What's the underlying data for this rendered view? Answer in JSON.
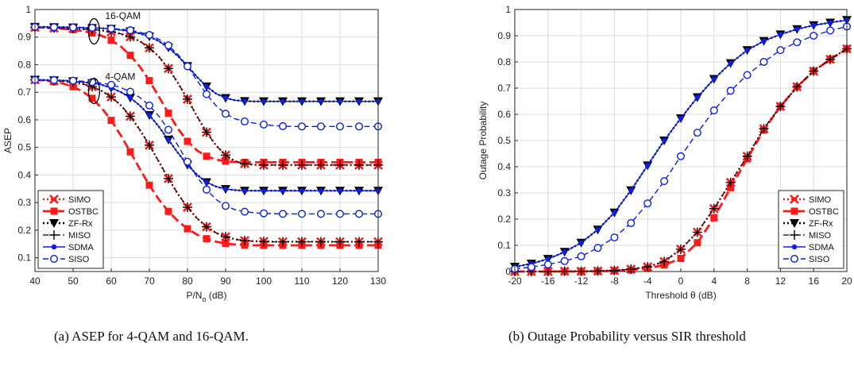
{
  "captions": {
    "a": "(a)  ASEP for 4-QAM and 16-QAM.",
    "b": "(b)  Outage Probability versus SIR threshold"
  },
  "chart_data": [
    {
      "type": "line",
      "xlabel": "P/N",
      "xlabel_sub": "o",
      "xlabel_unit": "(dB)",
      "ylabel": "ASEP",
      "xlim": [
        40,
        130
      ],
      "ylim": [
        0.05,
        1.0
      ],
      "xticks": [
        40,
        50,
        60,
        70,
        80,
        90,
        100,
        110,
        120,
        130
      ],
      "yticks": [
        0.1,
        0.2,
        0.3,
        0.4,
        0.5,
        0.6,
        0.7,
        0.8,
        0.9,
        1
      ],
      "grid": true,
      "legend_position": "bottom-left",
      "annotations": [
        "16-QAM",
        "4-QAM"
      ],
      "x": [
        40,
        42.5,
        45,
        47.5,
        50,
        52.5,
        55,
        57.5,
        60,
        62.5,
        65,
        67.5,
        70,
        72.5,
        75,
        77.5,
        80,
        82.5,
        85,
        87.5,
        90,
        92.5,
        95,
        97.5,
        100,
        102.5,
        105,
        107.5,
        110,
        112.5,
        115,
        117.5,
        120,
        122.5,
        125,
        127.5,
        130
      ],
      "series": [
        {
          "name": "SIMO",
          "group": "16-QAM",
          "values": [
            0.935,
            0.934,
            0.933,
            0.932,
            0.931,
            0.929,
            0.927,
            0.924,
            0.919,
            0.912,
            0.901,
            0.885,
            0.861,
            0.829,
            0.786,
            0.734,
            0.675,
            0.613,
            0.555,
            0.507,
            0.472,
            0.45,
            0.441,
            0.437,
            0.436,
            0.436,
            0.436,
            0.436,
            0.436,
            0.436,
            0.436,
            0.436,
            0.436,
            0.436,
            0.436,
            0.436,
            0.436
          ]
        },
        {
          "name": "OSTBC",
          "group": "16-QAM",
          "values": [
            0.935,
            0.934,
            0.932,
            0.93,
            0.927,
            0.922,
            0.915,
            0.905,
            0.889,
            0.866,
            0.834,
            0.793,
            0.742,
            0.684,
            0.624,
            0.568,
            0.522,
            0.489,
            0.468,
            0.456,
            0.45,
            0.447,
            0.446,
            0.446,
            0.446,
            0.446,
            0.446,
            0.446,
            0.446,
            0.446,
            0.446,
            0.446,
            0.446,
            0.446,
            0.446,
            0.446,
            0.446
          ]
        },
        {
          "name": "ZF-Rx",
          "group": "16-QAM",
          "values": [
            0.937,
            0.937,
            0.936,
            0.936,
            0.935,
            0.934,
            0.933,
            0.932,
            0.93,
            0.926,
            0.921,
            0.913,
            0.902,
            0.885,
            0.862,
            0.831,
            0.795,
            0.756,
            0.721,
            0.695,
            0.679,
            0.671,
            0.668,
            0.667,
            0.667,
            0.667,
            0.667,
            0.667,
            0.667,
            0.667,
            0.667,
            0.667,
            0.667,
            0.667,
            0.667,
            0.667,
            0.667
          ]
        },
        {
          "name": "MISO",
          "group": "16-QAM",
          "values": [
            0.935,
            0.934,
            0.933,
            0.932,
            0.931,
            0.929,
            0.927,
            0.924,
            0.919,
            0.912,
            0.901,
            0.885,
            0.861,
            0.829,
            0.786,
            0.734,
            0.675,
            0.613,
            0.555,
            0.507,
            0.472,
            0.45,
            0.441,
            0.437,
            0.436,
            0.436,
            0.436,
            0.436,
            0.436,
            0.436,
            0.436,
            0.436,
            0.436,
            0.436,
            0.436,
            0.436,
            0.436
          ]
        },
        {
          "name": "SDMA",
          "group": "16-QAM",
          "values": [
            0.937,
            0.937,
            0.936,
            0.936,
            0.935,
            0.934,
            0.933,
            0.932,
            0.93,
            0.926,
            0.921,
            0.913,
            0.902,
            0.885,
            0.862,
            0.831,
            0.795,
            0.756,
            0.721,
            0.695,
            0.679,
            0.671,
            0.668,
            0.667,
            0.667,
            0.667,
            0.667,
            0.667,
            0.667,
            0.667,
            0.667,
            0.667,
            0.667,
            0.667,
            0.667,
            0.667,
            0.667
          ]
        },
        {
          "name": "SISO",
          "group": "16-QAM",
          "values": [
            0.937,
            0.937,
            0.936,
            0.936,
            0.935,
            0.935,
            0.934,
            0.933,
            0.931,
            0.929,
            0.925,
            0.918,
            0.908,
            0.892,
            0.87,
            0.837,
            0.794,
            0.743,
            0.693,
            0.651,
            0.622,
            0.604,
            0.594,
            0.588,
            0.583,
            0.579,
            0.577,
            0.576,
            0.576,
            0.576,
            0.576,
            0.576,
            0.576,
            0.576,
            0.576,
            0.576,
            0.576
          ]
        },
        {
          "name": "SIMO",
          "group": "4-QAM",
          "values": [
            0.745,
            0.744,
            0.742,
            0.74,
            0.736,
            0.73,
            0.72,
            0.705,
            0.683,
            0.653,
            0.613,
            0.564,
            0.508,
            0.448,
            0.387,
            0.331,
            0.283,
            0.243,
            0.212,
            0.19,
            0.176,
            0.167,
            0.162,
            0.16,
            0.159,
            0.158,
            0.158,
            0.158,
            0.158,
            0.158,
            0.158,
            0.158,
            0.158,
            0.158,
            0.158,
            0.158,
            0.158
          ]
        },
        {
          "name": "OSTBC",
          "group": "4-QAM",
          "values": [
            0.745,
            0.743,
            0.738,
            0.731,
            0.72,
            0.703,
            0.678,
            0.643,
            0.598,
            0.544,
            0.484,
            0.422,
            0.363,
            0.311,
            0.268,
            0.233,
            0.205,
            0.184,
            0.169,
            0.158,
            0.152,
            0.148,
            0.146,
            0.145,
            0.145,
            0.145,
            0.145,
            0.145,
            0.145,
            0.145,
            0.145,
            0.145,
            0.145,
            0.145,
            0.145,
            0.145,
            0.145
          ]
        },
        {
          "name": "ZF-Rx",
          "group": "4-QAM",
          "values": [
            0.745,
            0.744,
            0.743,
            0.742,
            0.74,
            0.737,
            0.733,
            0.727,
            0.716,
            0.701,
            0.68,
            0.652,
            0.617,
            0.575,
            0.528,
            0.48,
            0.437,
            0.401,
            0.374,
            0.358,
            0.349,
            0.345,
            0.343,
            0.343,
            0.343,
            0.343,
            0.343,
            0.343,
            0.343,
            0.343,
            0.343,
            0.343,
            0.343,
            0.343,
            0.343,
            0.343,
            0.343
          ]
        },
        {
          "name": "MISO",
          "group": "4-QAM",
          "values": [
            0.745,
            0.744,
            0.742,
            0.74,
            0.736,
            0.73,
            0.72,
            0.705,
            0.683,
            0.653,
            0.613,
            0.564,
            0.508,
            0.448,
            0.387,
            0.331,
            0.283,
            0.243,
            0.212,
            0.19,
            0.176,
            0.167,
            0.162,
            0.16,
            0.159,
            0.158,
            0.158,
            0.158,
            0.158,
            0.158,
            0.158,
            0.158,
            0.158,
            0.158,
            0.158,
            0.158,
            0.158
          ]
        },
        {
          "name": "SDMA",
          "group": "4-QAM",
          "values": [
            0.745,
            0.744,
            0.743,
            0.742,
            0.74,
            0.737,
            0.733,
            0.727,
            0.716,
            0.701,
            0.68,
            0.652,
            0.617,
            0.575,
            0.528,
            0.48,
            0.437,
            0.401,
            0.374,
            0.358,
            0.349,
            0.345,
            0.343,
            0.343,
            0.343,
            0.343,
            0.343,
            0.343,
            0.343,
            0.343,
            0.343,
            0.343,
            0.343,
            0.343,
            0.343,
            0.343,
            0.343
          ]
        },
        {
          "name": "SISO",
          "group": "4-QAM",
          "values": [
            0.745,
            0.744,
            0.744,
            0.743,
            0.742,
            0.74,
            0.737,
            0.733,
            0.727,
            0.717,
            0.702,
            0.681,
            0.652,
            0.613,
            0.564,
            0.507,
            0.448,
            0.393,
            0.347,
            0.311,
            0.288,
            0.274,
            0.267,
            0.263,
            0.261,
            0.26,
            0.259,
            0.259,
            0.259,
            0.259,
            0.259,
            0.259,
            0.259,
            0.259,
            0.259,
            0.259,
            0.259
          ]
        }
      ]
    },
    {
      "type": "line",
      "xlabel": "Threshold θ (dB)",
      "ylabel": "Outage Probability",
      "xlim": [
        -20,
        20
      ],
      "ylim": [
        0,
        1
      ],
      "xticks": [
        -20,
        -16,
        -12,
        -8,
        -4,
        0,
        4,
        8,
        12,
        16,
        20
      ],
      "yticks": [
        0,
        0.1,
        0.2,
        0.3,
        0.4,
        0.5,
        0.6,
        0.7,
        0.8,
        0.9,
        1
      ],
      "grid": true,
      "legend_position": "bottom-right",
      "x": [
        -20,
        -18,
        -16,
        -14,
        -12,
        -10,
        -8,
        -6,
        -4,
        -2,
        0,
        2,
        4,
        6,
        8,
        10,
        12,
        14,
        16,
        18,
        20
      ],
      "series": [
        {
          "name": "SIMO",
          "values": [
            0.0,
            0.0,
            0.0,
            0.001,
            0.001,
            0.002,
            0.004,
            0.009,
            0.018,
            0.038,
            0.085,
            0.15,
            0.24,
            0.34,
            0.44,
            0.545,
            0.63,
            0.705,
            0.765,
            0.81,
            0.85
          ]
        },
        {
          "name": "OSTBC",
          "values": [
            0.0,
            0.0,
            0.0,
            0.0,
            0.0,
            0.001,
            0.003,
            0.006,
            0.012,
            0.025,
            0.05,
            0.11,
            0.205,
            0.32,
            0.43,
            0.54,
            0.63,
            0.705,
            0.765,
            0.81,
            0.85
          ]
        },
        {
          "name": "ZF-Rx",
          "values": [
            0.018,
            0.03,
            0.048,
            0.075,
            0.11,
            0.16,
            0.225,
            0.31,
            0.405,
            0.5,
            0.585,
            0.665,
            0.735,
            0.795,
            0.845,
            0.88,
            0.905,
            0.925,
            0.94,
            0.95,
            0.96
          ]
        },
        {
          "name": "MISO",
          "values": [
            0.0,
            0.0,
            0.0,
            0.001,
            0.001,
            0.002,
            0.004,
            0.009,
            0.018,
            0.038,
            0.085,
            0.15,
            0.24,
            0.34,
            0.44,
            0.545,
            0.63,
            0.705,
            0.765,
            0.81,
            0.85
          ]
        },
        {
          "name": "SDMA",
          "values": [
            0.018,
            0.03,
            0.048,
            0.075,
            0.11,
            0.16,
            0.225,
            0.31,
            0.405,
            0.5,
            0.585,
            0.665,
            0.735,
            0.795,
            0.845,
            0.88,
            0.905,
            0.925,
            0.94,
            0.95,
            0.96
          ]
        },
        {
          "name": "SISO",
          "values": [
            0.01,
            0.017,
            0.027,
            0.04,
            0.058,
            0.09,
            0.13,
            0.185,
            0.26,
            0.345,
            0.44,
            0.53,
            0.615,
            0.69,
            0.75,
            0.8,
            0.845,
            0.875,
            0.9,
            0.92,
            0.935
          ]
        }
      ]
    }
  ],
  "styles": {
    "SIMO": {
      "color": "#ff1a1a",
      "dash": "2,3",
      "width": 2.6,
      "marker": "x"
    },
    "OSTBC": {
      "color": "#ff1a1a",
      "dash": "11,5",
      "width": 2.8,
      "marker": "square"
    },
    "ZF-Rx": {
      "color": "#000000",
      "dash": "2,3",
      "width": 2.4,
      "marker": "triangle-down"
    },
    "MISO": {
      "color": "#000000",
      "dash": "7,3,2,3",
      "width": 1.3,
      "marker": "plus"
    },
    "SDMA": {
      "color": "#0a1ee6",
      "dash": "",
      "width": 1.4,
      "marker": "dot"
    },
    "SISO": {
      "color": "#0a1ee6",
      "dash": "7,4",
      "width": 1.4,
      "marker": "circle"
    }
  },
  "plot_colors": {
    "axis": "#262626",
    "grid": "#dcdcdc"
  }
}
